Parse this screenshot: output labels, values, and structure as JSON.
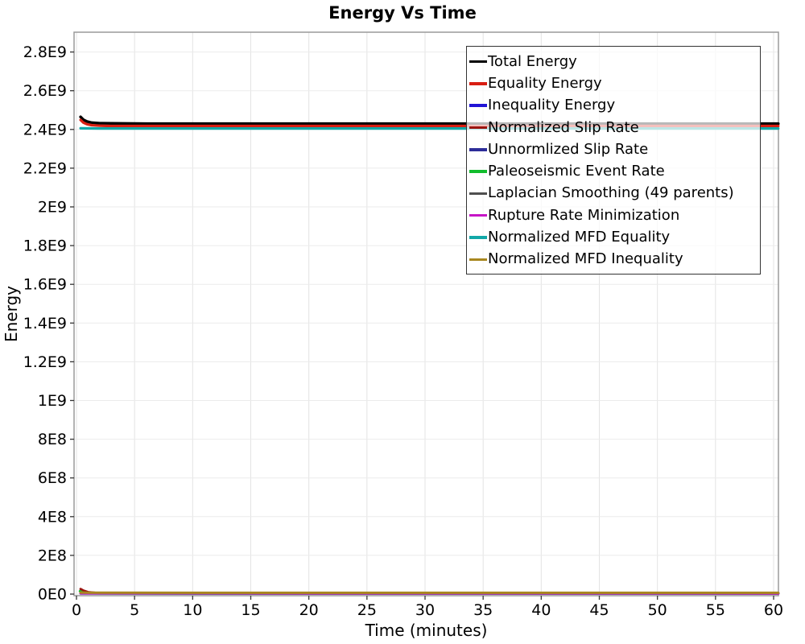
{
  "page_title": "Energy Vs Time",
  "chart_data": {
    "type": "line",
    "title": "Energy Vs Time",
    "xlabel": "Time (minutes)",
    "ylabel": "Energy",
    "xlim": [
      0,
      60.4
    ],
    "ylim": [
      0,
      2900000000.0
    ],
    "grid": true,
    "legend_position": "top-right-inside",
    "x_ticks": [
      0,
      5,
      10,
      15,
      20,
      25,
      30,
      35,
      40,
      45,
      50,
      55,
      60
    ],
    "x_tick_labels": [
      "0",
      "5",
      "10",
      "15",
      "20",
      "25",
      "30",
      "35",
      "40",
      "45",
      "50",
      "55",
      "60"
    ],
    "y_ticks": [
      0,
      200000000.0,
      400000000.0,
      600000000.0,
      800000000.0,
      1000000000.0,
      1200000000.0,
      1400000000.0,
      1600000000.0,
      1800000000.0,
      2000000000.0,
      2200000000.0,
      2400000000.0,
      2600000000.0,
      2800000000.0
    ],
    "y_tick_labels": [
      "0E0",
      "2E8",
      "4E8",
      "6E8",
      "8E8",
      "1E9",
      "1.2E9",
      "1.4E9",
      "1.6E9",
      "1.8E9",
      "2E9",
      "2.2E9",
      "2.4E9",
      "2.6E9",
      "2.8E9"
    ],
    "series": [
      {
        "name": "Total Energy",
        "color": "#000000",
        "width": 3.5,
        "points": [
          [
            0.35,
            2465000000.0
          ],
          [
            0.6,
            2450000000.0
          ],
          [
            0.9,
            2441000000.0
          ],
          [
            1.3,
            2435000000.0
          ],
          [
            2,
            2432000000.0
          ],
          [
            3,
            2431000000.0
          ],
          [
            6,
            2430000000.0
          ],
          [
            15,
            2430000000.0
          ],
          [
            60.4,
            2430000000.0
          ]
        ]
      },
      {
        "name": "Equality Energy",
        "color": "#d91e12",
        "width": 3.2,
        "points": [
          [
            0.35,
            2449000000.0
          ],
          [
            0.6,
            2435000000.0
          ],
          [
            0.9,
            2427000000.0
          ],
          [
            1.3,
            2422000000.0
          ],
          [
            2,
            2419000000.0
          ],
          [
            3,
            2418000000.0
          ],
          [
            6,
            2418000000.0
          ],
          [
            15,
            2418000000.0
          ],
          [
            60.4,
            2418000000.0
          ]
        ]
      },
      {
        "name": "Inequality Energy",
        "color": "#2114d6",
        "width": 3,
        "points": [
          [
            0.35,
            5000000.0
          ],
          [
            2,
            4200000.0
          ],
          [
            60.4,
            4000000.0
          ]
        ]
      },
      {
        "name": "Normalized Slip Rate",
        "color": "#9c1410",
        "width": 3,
        "points": [
          [
            0.35,
            26000000.0
          ],
          [
            0.6,
            18000000.0
          ],
          [
            1,
            10000000.0
          ],
          [
            1.6,
            6500000.0
          ],
          [
            2.5,
            5000000.0
          ],
          [
            4,
            4500000.0
          ],
          [
            60.4,
            4500000.0
          ]
        ]
      },
      {
        "name": "Unnormlized Slip Rate",
        "color": "#2d2d99",
        "width": 3,
        "points": [
          [
            0.35,
            3000000.0
          ],
          [
            60.4,
            2600000.0
          ]
        ]
      },
      {
        "name": "Paleoseismic Event Rate",
        "color": "#12bd2d",
        "width": 3,
        "points": [
          [
            0.3,
            15000000.0
          ],
          [
            0.55,
            8000000.0
          ],
          [
            0.9,
            4500000.0
          ],
          [
            2,
            3600000.0
          ],
          [
            60.4,
            3600000.0
          ]
        ]
      },
      {
        "name": "Laplacian Smoothing (49 parents)",
        "color": "#4f4f4f",
        "width": 3,
        "points": [
          [
            0.35,
            6000000.0
          ],
          [
            60.4,
            5500000.0
          ]
        ]
      },
      {
        "name": "Rupture Rate Minimization",
        "color": "#c615c6",
        "width": 3,
        "points": [
          [
            0.35,
            4200000.0
          ],
          [
            60.4,
            3200000.0
          ]
        ]
      },
      {
        "name": "Normalized MFD Equality",
        "color": "#12a8a8",
        "width": 3.2,
        "points": [
          [
            0.35,
            2406000000.0
          ],
          [
            2,
            2405000000.0
          ],
          [
            60.4,
            2405000000.0
          ]
        ]
      },
      {
        "name": "Normalized MFD Inequality",
        "color": "#a8871f",
        "width": 3,
        "points": [
          [
            0.35,
            8000000.0
          ],
          [
            1,
            7200000.0
          ],
          [
            60.4,
            6800000.0
          ]
        ]
      }
    ]
  }
}
